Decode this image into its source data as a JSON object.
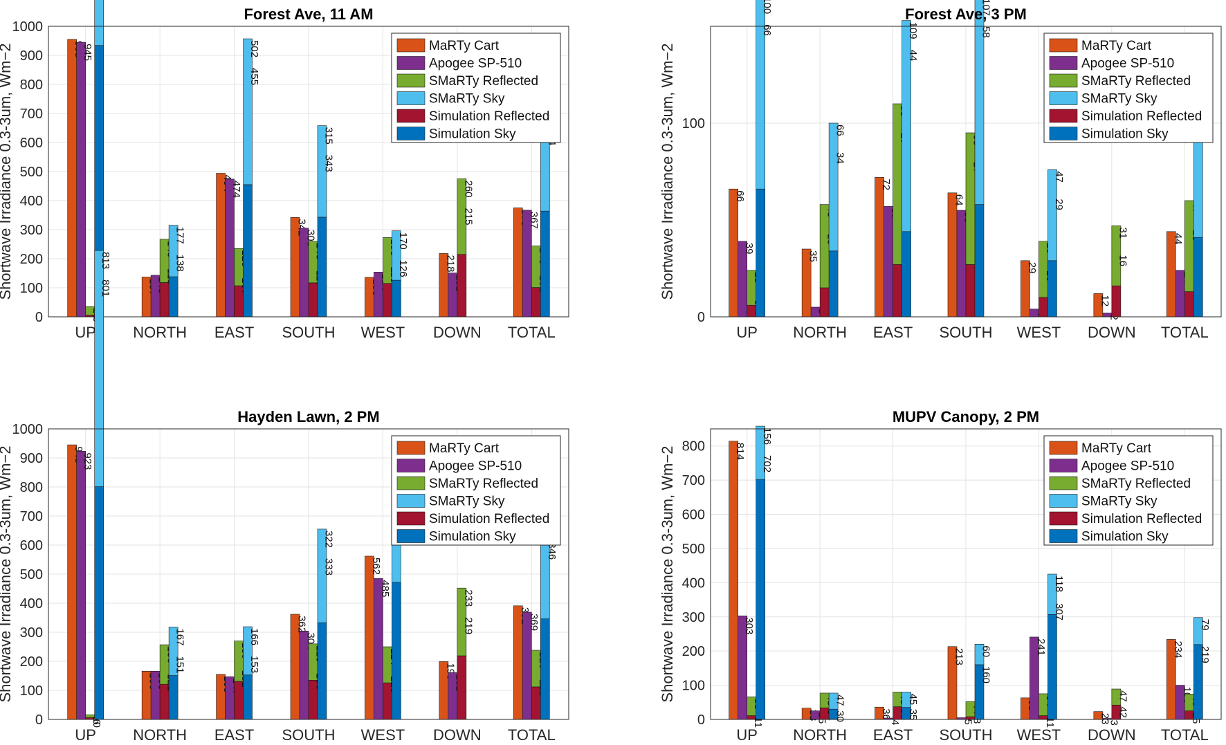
{
  "figure": {
    "series_names": [
      "MaRTy Cart",
      "Apogee SP-510",
      "SMaRTy Reflected",
      "SMaRTy Sky",
      "Simulation Reflected",
      "Simulation Sky"
    ],
    "colors": {
      "marty": "#D95319",
      "apogee": "#7E2F8E",
      "smarty_reflected": "#77AC30",
      "smarty_sky": "#4DBEEE",
      "sim_reflected": "#A2142F",
      "sim_sky": "#0072BD"
    }
  },
  "chart_data": [
    {
      "type": "bar",
      "title": "Forest Ave, 11 AM",
      "ylabel": "Shortwave Irradiance 0.3-3um, Wm−2",
      "xlabel": "",
      "categories": [
        "UP",
        "NORTH",
        "EAST",
        "SOUTH",
        "WEST",
        "DOWN",
        "TOTAL"
      ],
      "ylim": [
        0,
        1000
      ],
      "yticks": [
        "0",
        "100",
        "200",
        "300",
        "400",
        "500",
        "600",
        "700",
        "800",
        "900",
        "1000"
      ],
      "legend": "top-right",
      "series": [
        {
          "name": "MaRTy Cart",
          "values": [
            955,
            137,
            494,
            342,
            136,
            218,
            375
          ]
        },
        {
          "name": "Apogee SP-510",
          "values": [
            945,
            143,
            474,
            305,
            154,
            151,
            367
          ]
        },
        {
          "name": "SMaRTy Reflected",
          "values": [
            29,
            149,
            128,
            143,
            158,
            260,
            143
          ]
        },
        {
          "name": "SMaRTy Sky",
          "values": [
            869,
            177,
            502,
            315,
            170,
            null,
            385
          ]
        },
        {
          "name": "Simulation Reflected",
          "values": [
            6,
            118,
            107,
            117,
            115,
            215,
            101
          ]
        },
        {
          "name": "Simulation Sky",
          "values": [
            934,
            138,
            455,
            343,
            126,
            null,
            364
          ]
        }
      ]
    },
    {
      "type": "bar",
      "title": "Forest Ave, 3 PM",
      "ylabel": "Shortwave Irradiance 0.3-3um, Wm−2",
      "xlabel": "",
      "categories": [
        "UP",
        "NORTH",
        "EAST",
        "SOUTH",
        "WEST",
        "DOWN",
        "TOTAL"
      ],
      "ylim": [
        0,
        150
      ],
      "yticks": [
        "0",
        "100"
      ],
      "ytick_values": [
        0,
        100
      ],
      "legend": "top-right",
      "series": [
        {
          "name": "MaRTy Cart",
          "values": [
            66,
            35,
            72,
            64,
            29,
            12,
            44
          ]
        },
        {
          "name": "Apogee SP-510",
          "values": [
            39,
            5,
            57,
            55,
            4,
            2,
            24
          ]
        },
        {
          "name": "SMaRTy Reflected",
          "values": [
            18,
            43,
            83,
            68,
            29,
            31,
            47
          ]
        },
        {
          "name": "SMaRTy Sky",
          "values": [
            100,
            66,
            109,
            107,
            47,
            null,
            78
          ]
        },
        {
          "name": "Simulation Reflected",
          "values": [
            6,
            15,
            27,
            27,
            10,
            16,
            13
          ]
        },
        {
          "name": "Simulation Sky",
          "values": [
            66,
            34,
            44,
            58,
            29,
            null,
            41
          ]
        }
      ]
    },
    {
      "type": "bar",
      "title": "Hayden Lawn, 2 PM",
      "ylabel": "Shortwave Irradiance 0.3-3um, Wm−2",
      "xlabel": "",
      "categories": [
        "UP",
        "NORTH",
        "EAST",
        "SOUTH",
        "WEST",
        "DOWN",
        "TOTAL"
      ],
      "ylim": [
        0,
        1000
      ],
      "yticks": [
        "0",
        "100",
        "200",
        "300",
        "400",
        "500",
        "600",
        "700",
        "800",
        "900",
        "1000"
      ],
      "legend": "top-right",
      "series": [
        {
          "name": "MaRTy Cart",
          "values": [
            945,
            166,
            155,
            362,
            562,
            199,
            391
          ]
        },
        {
          "name": "Apogee SP-510",
          "values": [
            923,
            166,
            147,
            304,
            485,
            161,
            369
          ]
        },
        {
          "name": "SMaRTy Reflected",
          "values": [
            10,
            136,
            139,
            125,
            124,
            233,
            126
          ]
        },
        {
          "name": "SMaRTy Sky",
          "values": [
            813,
            167,
            166,
            322,
            475,
            null,
            363
          ]
        },
        {
          "name": "Simulation Reflected",
          "values": [
            6,
            121,
            131,
            135,
            126,
            219,
            112
          ]
        },
        {
          "name": "Simulation Sky",
          "values": [
            801,
            151,
            153,
            333,
            472,
            null,
            346
          ]
        }
      ]
    },
    {
      "type": "bar",
      "title": "MUPV Canopy, 2 PM",
      "ylabel": "Shortwave Irradiance 0.3-3um, Wm−2",
      "xlabel": "",
      "categories": [
        "UP",
        "NORTH",
        "EAST",
        "SOUTH",
        "WEST",
        "DOWN",
        "TOTAL"
      ],
      "ylim": [
        0,
        850
      ],
      "yticks": [
        "0",
        "100",
        "200",
        "300",
        "400",
        "500",
        "600",
        "700",
        "800"
      ],
      "legend": "top-right",
      "series": [
        {
          "name": "MaRTy Cart",
          "values": [
            814,
            33,
            36,
            213,
            63,
            23,
            234
          ]
        },
        {
          "name": "Apogee SP-510",
          "values": [
            303,
            25,
            4,
            5,
            241,
            3,
            100
          ]
        },
        {
          "name": "SMaRTy Reflected",
          "values": [
            55,
            43,
            43,
            44,
            64,
            47,
            49
          ]
        },
        {
          "name": "SMaRTy Sky",
          "values": [
            156,
            47,
            45,
            60,
            118,
            null,
            79
          ]
        },
        {
          "name": "Simulation Reflected",
          "values": [
            11,
            34,
            37,
            8,
            11,
            42,
            25
          ]
        },
        {
          "name": "Simulation Sky",
          "values": [
            702,
            30,
            35,
            160,
            307,
            null,
            219
          ]
        }
      ]
    }
  ]
}
